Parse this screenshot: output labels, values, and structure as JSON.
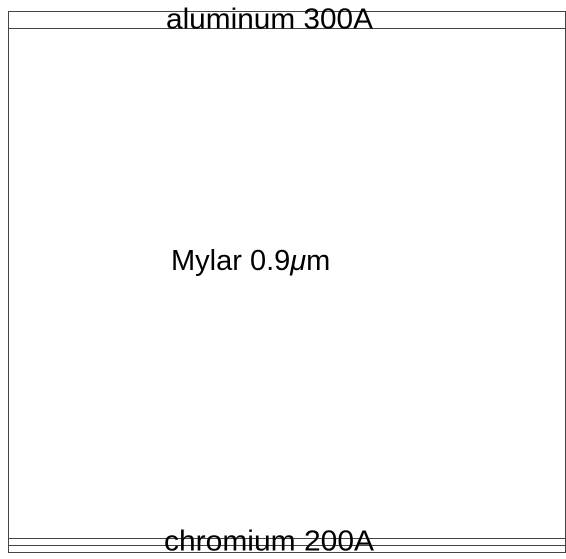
{
  "layers": [
    {
      "label": "aluminum 300A"
    },
    {
      "label_parts": [
        "Mylar 0.9",
        "μ",
        "m"
      ]
    },
    {
      "label": "chromium 200A"
    }
  ]
}
